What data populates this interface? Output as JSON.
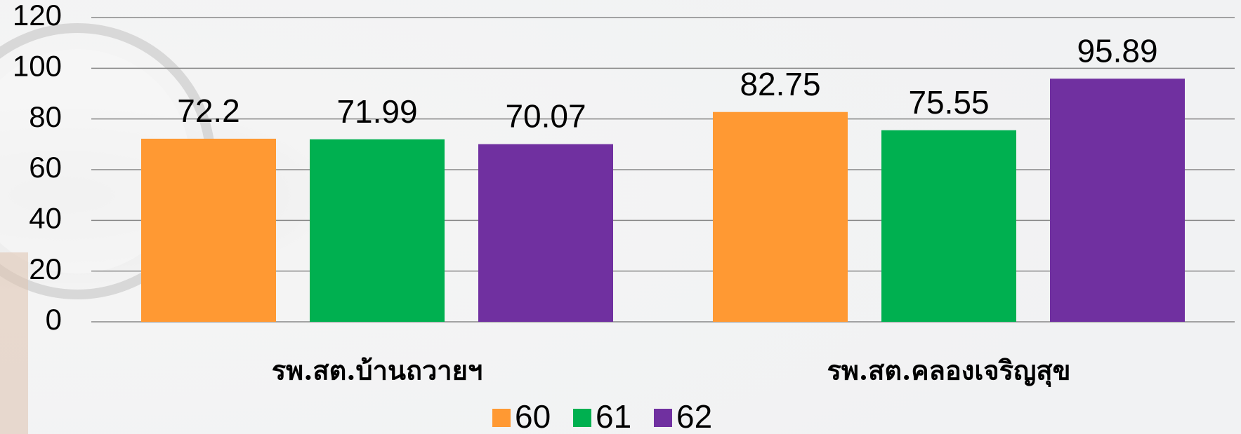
{
  "chart_data": {
    "type": "bar",
    "categories": [
      "รพ.สต.บ้านถวายฯ",
      "รพ.สต.คลองเจริญสุข"
    ],
    "series": [
      {
        "name": "60",
        "color": "#ff9933",
        "values": [
          72.2,
          82.75
        ]
      },
      {
        "name": "61",
        "color": "#00b050",
        "values": [
          71.99,
          75.55
        ]
      },
      {
        "name": "62",
        "color": "#7030a0",
        "values": [
          70.07,
          95.89
        ]
      }
    ],
    "ylim": [
      0,
      120
    ],
    "yticks": [
      0,
      20,
      40,
      60,
      80,
      100,
      120
    ],
    "grid": true,
    "legend": "bottom"
  }
}
